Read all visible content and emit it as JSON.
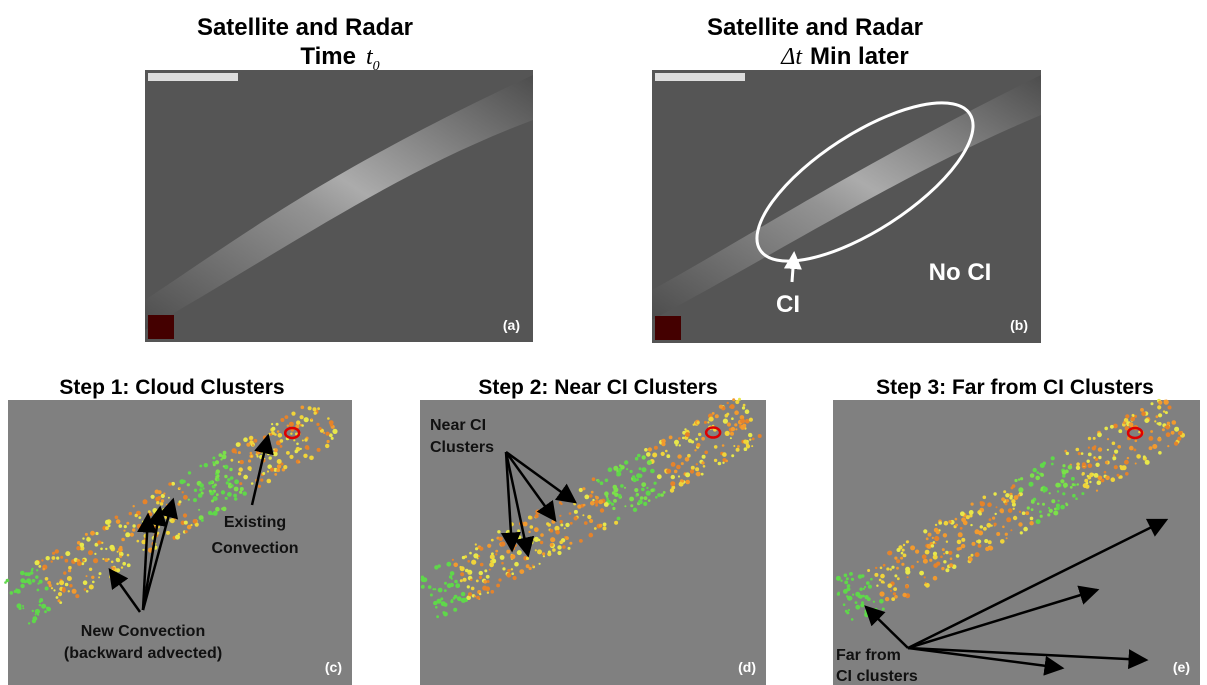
{
  "top_panels": [
    {
      "title": "Satellite and Radar",
      "subtitle": "Time",
      "symbol": "t",
      "subscript": "0",
      "label": "(a)"
    },
    {
      "title": "Satellite and Radar",
      "symbol": "Δt",
      "subtitle": "Min later",
      "label": "(b)",
      "annotations": [
        "CI",
        "No CI"
      ]
    }
  ],
  "bottom_panels": [
    {
      "title": "Step 1: Cloud Clusters",
      "label": "(c)",
      "annotations": [
        [
          "Existing",
          "Convection"
        ],
        [
          "New Convection",
          "(backward advected)"
        ]
      ]
    },
    {
      "title": "Step 2: Near CI Clusters",
      "label": "(d)",
      "annotations": [
        [
          "Near CI",
          "Clusters"
        ]
      ]
    },
    {
      "title": "Step 3: Far from CI Clusters",
      "label": "(e)",
      "annotations": [
        [
          "Far from",
          "CI clusters"
        ]
      ]
    }
  ]
}
